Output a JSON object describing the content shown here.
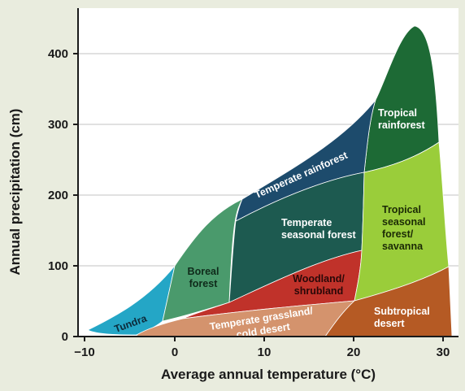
{
  "chart_data": {
    "type": "area",
    "xlabel": "Average annual temperature (°C)",
    "ylabel": "Annual precipitation (cm)",
    "xlim": [
      -12,
      33
    ],
    "ylim": [
      0,
      450
    ],
    "x_ticks": [
      "−10",
      "0",
      "10",
      "20",
      "30"
    ],
    "y_ticks": [
      "0",
      "100",
      "200",
      "300",
      "400"
    ],
    "grid": true,
    "regions": [
      {
        "name": "Tundra",
        "lines": [
          "Tundra"
        ],
        "color": "#24a6c6"
      },
      {
        "name": "Boreal forest",
        "lines": [
          "Boreal",
          "forest"
        ],
        "color": "#4a9a6c"
      },
      {
        "name": "Temperate rainforest",
        "lines": [
          "Temperate rainforest"
        ],
        "color": "#1d4b6c"
      },
      {
        "name": "Temperate seasonal forest",
        "lines": [
          "Temperate",
          "seasonal forest"
        ],
        "color": "#1d5a50"
      },
      {
        "name": "Woodland/shrubland",
        "lines": [
          "Woodland/",
          "shrubland"
        ],
        "color": "#c0322a"
      },
      {
        "name": "Temperate grassland/cold desert",
        "lines": [
          "Temperate grassland/",
          "cold desert"
        ],
        "color": "#d4936d"
      },
      {
        "name": "Tropical rainforest",
        "lines": [
          "Tropical",
          "rainforest"
        ],
        "color": "#1d6a35"
      },
      {
        "name": "Tropical seasonal forest/savanna",
        "lines": [
          "Tropical",
          "seasonal",
          "forest/",
          "savanna"
        ],
        "color": "#9acd3a"
      },
      {
        "name": "Subtropical desert",
        "lines": [
          "Subtropical",
          "desert"
        ],
        "color": "#b55a24"
      }
    ]
  }
}
